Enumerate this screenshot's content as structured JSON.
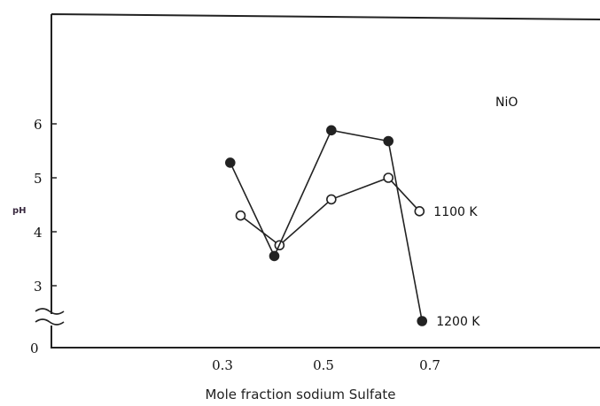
{
  "chart_data": {
    "type": "line",
    "title": "",
    "xlabel": "Mole fraction sodium Sulfate",
    "ylabel": "pH",
    "annotation": "NiO",
    "x_ticks": [
      "0.3",
      "0.5",
      "0.7"
    ],
    "y_ticks": [
      "0",
      "3",
      "4",
      "5",
      "6"
    ],
    "axis_break": "y-axis broken between 0 and 3",
    "series": [
      {
        "name": "1100 K",
        "marker": "open-circle",
        "color": "#222222",
        "points": [
          [
            0.335,
            4.3
          ],
          [
            0.41,
            3.75
          ],
          [
            0.51,
            4.6
          ],
          [
            0.62,
            5.0
          ],
          [
            0.68,
            4.38
          ]
        ]
      },
      {
        "name": "1200 K",
        "marker": "filled-circle",
        "color": "#222222",
        "points": [
          [
            0.315,
            5.28
          ],
          [
            0.4,
            3.55
          ],
          [
            0.51,
            5.88
          ],
          [
            0.62,
            5.68
          ],
          [
            0.685,
            2.45
          ]
        ]
      }
    ]
  }
}
